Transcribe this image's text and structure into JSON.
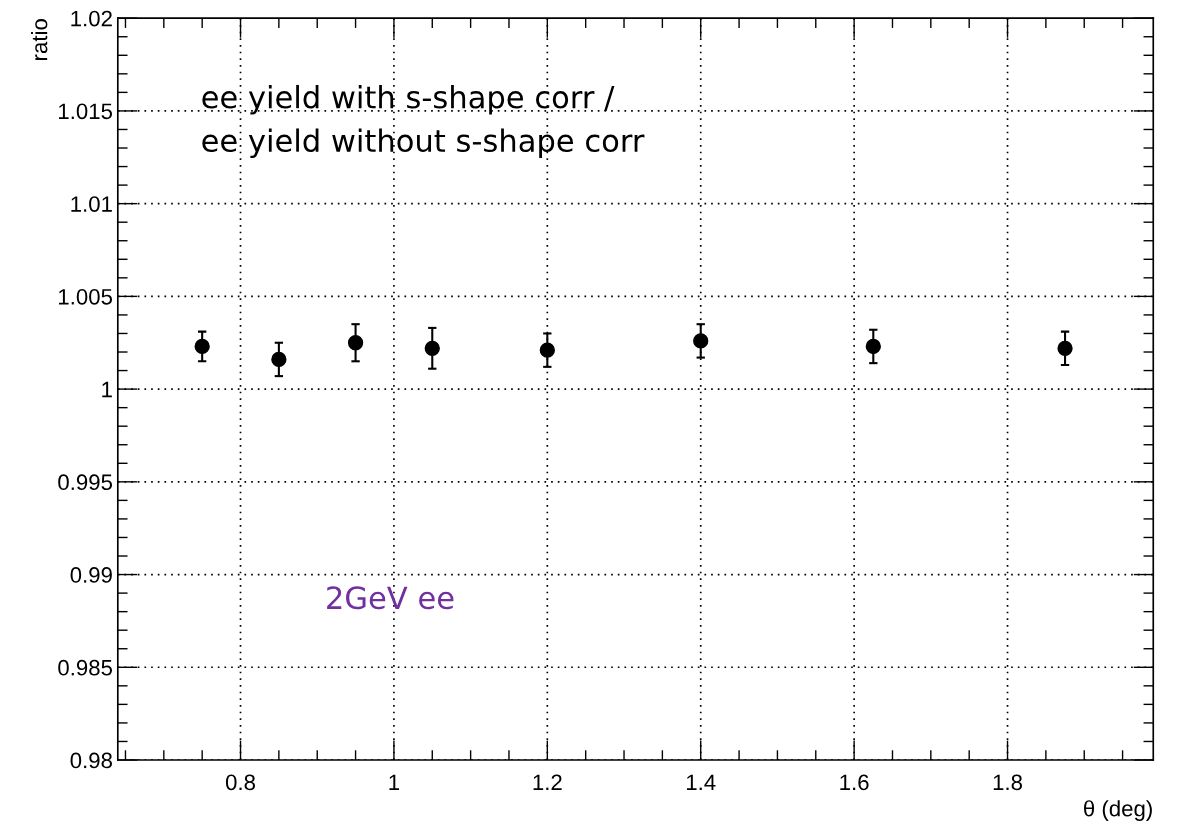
{
  "chart_data": {
    "type": "scatter",
    "xlabel": "θ (deg)",
    "ylabel": "ratio",
    "annotations": [
      "ee yield with s-shape corr /\nee yield without s-shape corr",
      "2GeV ee"
    ],
    "x": [
      0.75,
      0.85,
      0.95,
      1.05,
      1.2,
      1.4,
      1.625,
      1.875
    ],
    "series": [
      {
        "color": "#000000",
        "values": [
          1.0023,
          1.0016,
          1.0025,
          1.0022,
          1.0021,
          1.0026,
          1.0023,
          1.0022
        ],
        "errors": [
          0.0008,
          0.0009,
          0.001,
          0.0011,
          0.0009,
          0.0009,
          0.0009,
          0.0009
        ]
      }
    ],
    "xlim": [
      0.64,
      1.99
    ],
    "xticks": [
      0.8,
      1,
      1.2,
      1.4,
      1.6,
      1.8
    ],
    "ylim": [
      0.98,
      1.02
    ],
    "yticks": [
      0.98,
      0.985,
      0.99,
      0.995,
      1,
      1.005,
      1.01,
      1.015,
      1.02
    ],
    "grid": true,
    "marker": "circle",
    "legend": false
  }
}
